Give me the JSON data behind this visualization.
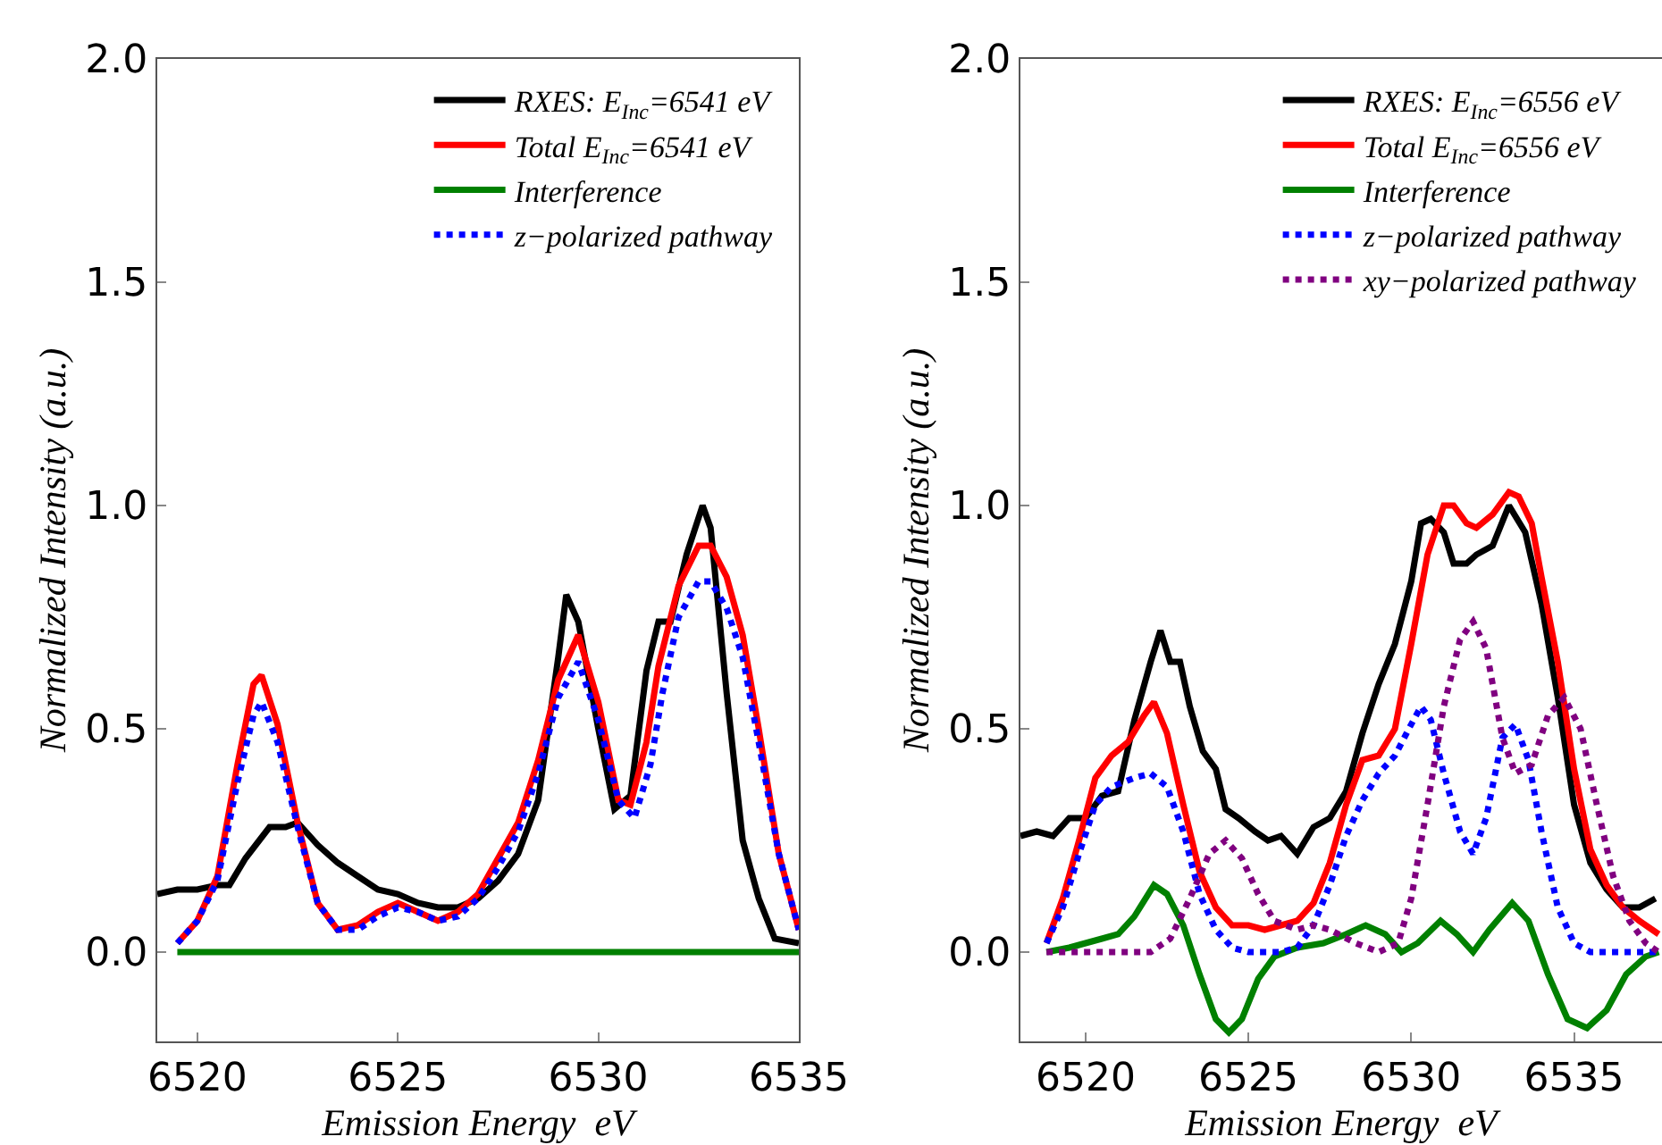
{
  "chart_data": [
    {
      "type": "line",
      "xlabel": "Emission Energy  eV",
      "ylabel": "Normalized Intensity (a.u.)",
      "xlim": [
        6519,
        6535
      ],
      "ylim": [
        -0.2,
        2.0
      ],
      "xticks": [
        6520,
        6525,
        6530,
        6535
      ],
      "yticks": [
        {
          "value": 0,
          "label": "0.0"
        },
        {
          "value": 0.5,
          "label": "0.5"
        },
        {
          "value": 1,
          "label": "1.0"
        },
        {
          "value": 1.5,
          "label": "1.5"
        },
        {
          "value": 2,
          "label": "2.0"
        }
      ],
      "legend": "top right",
      "marker": "none",
      "series": [
        {
          "name": "RXES: E$_{Inc}$=6541 eV",
          "color": "#000000",
          "line_style": "solid",
          "x": [
            6519,
            6519.5,
            6520,
            6520.5,
            6520.8,
            6521.2,
            6521.8,
            6522.2,
            6522.5,
            6523,
            6523.5,
            6524,
            6524.5,
            6525,
            6525.5,
            6526,
            6526.5,
            6527,
            6527.5,
            6528,
            6528.5,
            6529,
            6529.2,
            6529.5,
            6530,
            6530.4,
            6530.8,
            6531.2,
            6531.5,
            6531.8,
            6532.2,
            6532.6,
            6532.8,
            6533.2,
            6533.6,
            6534,
            6534.4,
            6535
          ],
          "values": [
            0.13,
            0.14,
            0.14,
            0.15,
            0.15,
            0.21,
            0.28,
            0.28,
            0.29,
            0.24,
            0.2,
            0.17,
            0.14,
            0.13,
            0.11,
            0.1,
            0.1,
            0.12,
            0.16,
            0.22,
            0.34,
            0.66,
            0.8,
            0.74,
            0.5,
            0.32,
            0.35,
            0.63,
            0.74,
            0.74,
            0.89,
            1.0,
            0.95,
            0.58,
            0.25,
            0.12,
            0.03,
            0.02
          ]
        },
        {
          "name": "Total E$_{Inc}$=6541 eV",
          "color": "#ff0000",
          "line_style": "solid",
          "x": [
            6519.5,
            6520,
            6520.5,
            6521,
            6521.4,
            6521.6,
            6522,
            6522.5,
            6523,
            6523.5,
            6524,
            6524.5,
            6525,
            6525.5,
            6526,
            6526.5,
            6527,
            6527.5,
            6528,
            6528.5,
            6529,
            6529.5,
            6530,
            6530.5,
            6530.8,
            6531.2,
            6531.5,
            6532,
            6532.5,
            6532.8,
            6533.2,
            6533.6,
            6534,
            6534.5,
            6535
          ],
          "values": [
            0.02,
            0.07,
            0.17,
            0.42,
            0.6,
            0.62,
            0.51,
            0.29,
            0.11,
            0.05,
            0.06,
            0.09,
            0.11,
            0.09,
            0.07,
            0.09,
            0.13,
            0.21,
            0.29,
            0.43,
            0.61,
            0.71,
            0.56,
            0.34,
            0.33,
            0.47,
            0.64,
            0.82,
            0.91,
            0.91,
            0.84,
            0.71,
            0.5,
            0.22,
            0.05
          ]
        },
        {
          "name": "Interference",
          "color": "#008000",
          "line_style": "solid",
          "x": [
            6519.5,
            6535
          ],
          "values": [
            0,
            0
          ]
        },
        {
          "name": "z−polarized pathway",
          "color": "#0000ff",
          "line_style": "dotted",
          "x": [
            6519.5,
            6520,
            6520.5,
            6521,
            6521.4,
            6521.6,
            6522,
            6522.5,
            6523,
            6523.5,
            6524,
            6524.5,
            6525,
            6525.5,
            6526,
            6526.5,
            6527,
            6527.5,
            6528,
            6528.5,
            6529,
            6529.5,
            6530,
            6530.5,
            6530.9,
            6531.3,
            6531.6,
            6532,
            6532.5,
            6532.8,
            6533.2,
            6533.6,
            6534,
            6534.5,
            6535
          ],
          "values": [
            0.02,
            0.07,
            0.16,
            0.38,
            0.53,
            0.56,
            0.47,
            0.28,
            0.11,
            0.05,
            0.05,
            0.08,
            0.1,
            0.09,
            0.07,
            0.08,
            0.12,
            0.19,
            0.27,
            0.4,
            0.57,
            0.65,
            0.52,
            0.34,
            0.3,
            0.42,
            0.58,
            0.75,
            0.83,
            0.83,
            0.77,
            0.66,
            0.47,
            0.22,
            0.05
          ]
        }
      ]
    },
    {
      "type": "line",
      "xlabel": "Emission Energy  eV",
      "ylabel": "Normalized Intensity (a.u.)",
      "xlim": [
        6518,
        6537.7
      ],
      "ylim": [
        -0.2,
        2.0
      ],
      "xticks": [
        6520,
        6525,
        6530,
        6535
      ],
      "yticks": [
        {
          "value": 0,
          "label": "0.0"
        },
        {
          "value": 0.5,
          "label": "0.5"
        },
        {
          "value": 1,
          "label": "1.0"
        },
        {
          "value": 1.5,
          "label": "1.5"
        },
        {
          "value": 2,
          "label": "2.0"
        }
      ],
      "legend": "top right",
      "marker": "none",
      "series": [
        {
          "name": "RXES: E$_{Inc}$=6556 eV",
          "color": "#000000",
          "line_style": "solid",
          "x": [
            6518,
            6518.5,
            6519,
            6519.5,
            6520,
            6520.5,
            6521,
            6521.5,
            6522,
            6522.3,
            6522.6,
            6522.9,
            6523.2,
            6523.6,
            6524,
            6524.3,
            6524.7,
            6525.2,
            6525.6,
            6526,
            6526.5,
            6527,
            6527.5,
            6528,
            6528.5,
            6529,
            6529.5,
            6530,
            6530.3,
            6530.6,
            6531,
            6531.3,
            6531.7,
            6532,
            6532.5,
            6533,
            6533.5,
            6534,
            6534.5,
            6535,
            6535.5,
            6536,
            6536.5,
            6537,
            6537.5
          ],
          "values": [
            0.26,
            0.27,
            0.26,
            0.3,
            0.3,
            0.35,
            0.36,
            0.52,
            0.65,
            0.72,
            0.65,
            0.65,
            0.55,
            0.45,
            0.41,
            0.32,
            0.3,
            0.27,
            0.25,
            0.26,
            0.22,
            0.28,
            0.3,
            0.36,
            0.49,
            0.6,
            0.69,
            0.83,
            0.96,
            0.97,
            0.94,
            0.87,
            0.87,
            0.89,
            0.91,
            1.0,
            0.94,
            0.78,
            0.57,
            0.33,
            0.2,
            0.14,
            0.1,
            0.1,
            0.12
          ]
        },
        {
          "name": "Total E$_{Inc}$=6556 eV",
          "color": "#ff0000",
          "line_style": "solid",
          "x": [
            6518.8,
            6519.3,
            6519.8,
            6520.3,
            6520.8,
            6521.3,
            6521.8,
            6522.1,
            6522.5,
            6523,
            6523.5,
            6524,
            6524.5,
            6525,
            6525.5,
            6526,
            6526.5,
            6527,
            6527.5,
            6528,
            6528.5,
            6529,
            6529.5,
            6530,
            6530.5,
            6531,
            6531.3,
            6531.7,
            6532,
            6532.5,
            6533,
            6533.3,
            6533.7,
            6534,
            6534.5,
            6535,
            6535.5,
            6536,
            6536.5,
            6537,
            6537.6
          ],
          "values": [
            0.02,
            0.12,
            0.25,
            0.39,
            0.44,
            0.47,
            0.53,
            0.56,
            0.49,
            0.33,
            0.18,
            0.1,
            0.06,
            0.06,
            0.05,
            0.06,
            0.07,
            0.11,
            0.2,
            0.33,
            0.43,
            0.44,
            0.5,
            0.69,
            0.89,
            1.0,
            1.0,
            0.96,
            0.95,
            0.98,
            1.03,
            1.02,
            0.96,
            0.84,
            0.65,
            0.41,
            0.23,
            0.15,
            0.1,
            0.07,
            0.04
          ]
        },
        {
          "name": "Interference",
          "color": "#008000",
          "line_style": "solid",
          "x": [
            6518.8,
            6519.5,
            6520.5,
            6521,
            6521.5,
            6522.1,
            6522.5,
            6523,
            6523.5,
            6524,
            6524.4,
            6524.8,
            6525.3,
            6525.8,
            6526.5,
            6527.3,
            6528,
            6528.6,
            6529.2,
            6529.7,
            6530.2,
            6530.9,
            6531.4,
            6531.9,
            6532.4,
            6533.1,
            6533.6,
            6534.2,
            6534.8,
            6535.4,
            6536,
            6536.6,
            6537.2,
            6537.6
          ],
          "values": [
            0.0,
            0.01,
            0.03,
            0.04,
            0.08,
            0.15,
            0.13,
            0.06,
            -0.05,
            -0.15,
            -0.18,
            -0.15,
            -0.06,
            -0.01,
            0.01,
            0.02,
            0.04,
            0.06,
            0.04,
            0.0,
            0.02,
            0.07,
            0.04,
            0.0,
            0.05,
            0.11,
            0.07,
            -0.05,
            -0.15,
            -0.17,
            -0.13,
            -0.05,
            -0.01,
            0.0
          ]
        },
        {
          "name": "z−polarized pathway",
          "color": "#0000ff",
          "line_style": "dotted",
          "x": [
            6518.8,
            6519.3,
            6519.8,
            6520.3,
            6520.8,
            6521.5,
            6522,
            6522.5,
            6523,
            6523.5,
            6524,
            6524.5,
            6525,
            6526,
            6526.5,
            6527,
            6527.5,
            6528,
            6528.5,
            6529,
            6529.5,
            6530,
            6530.3,
            6530.6,
            6531,
            6531.5,
            6531.9,
            6532.3,
            6532.8,
            6533.2,
            6533.6,
            6534,
            6534.5,
            6535,
            6535.5,
            6537.6
          ],
          "values": [
            0.02,
            0.1,
            0.22,
            0.33,
            0.37,
            0.39,
            0.4,
            0.37,
            0.27,
            0.13,
            0.05,
            0.01,
            0.0,
            0.0,
            0.01,
            0.06,
            0.15,
            0.26,
            0.34,
            0.4,
            0.44,
            0.51,
            0.55,
            0.52,
            0.4,
            0.27,
            0.22,
            0.3,
            0.48,
            0.51,
            0.43,
            0.27,
            0.1,
            0.02,
            0.0,
            0.0
          ]
        },
        {
          "name": "xy−polarized pathway",
          "color": "#800080",
          "line_style": "dotted",
          "x": [
            6518.8,
            6522,
            6522.6,
            6523.2,
            6523.8,
            6524.3,
            6524.8,
            6525.3,
            6525.8,
            6526.5,
            6527,
            6527.5,
            6528.3,
            6529,
            6529.6,
            6530,
            6530.5,
            6531,
            6531.5,
            6531.9,
            6532.3,
            6532.8,
            6533.2,
            6533.7,
            6534.2,
            6534.7,
            6535.2,
            6535.7,
            6536.2,
            6536.7,
            6537.2,
            6537.6
          ],
          "values": [
            0.0,
            0.0,
            0.03,
            0.12,
            0.22,
            0.25,
            0.21,
            0.13,
            0.07,
            0.05,
            0.06,
            0.05,
            0.02,
            0.0,
            0.02,
            0.12,
            0.33,
            0.55,
            0.7,
            0.74,
            0.68,
            0.48,
            0.4,
            0.42,
            0.53,
            0.57,
            0.5,
            0.33,
            0.17,
            0.07,
            0.02,
            0.0
          ]
        }
      ]
    }
  ]
}
